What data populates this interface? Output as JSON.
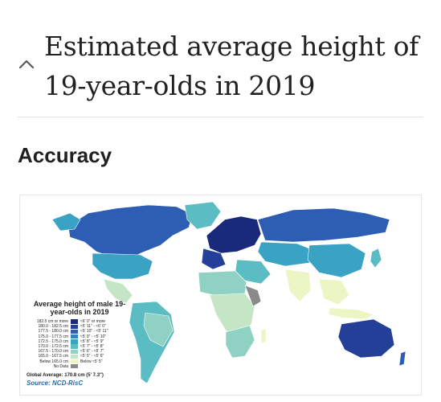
{
  "header": {
    "title": "Estimated average height of 19-year-olds in 2019",
    "collapse_icon": "chevron-up-icon"
  },
  "section": {
    "heading": "Accuracy"
  },
  "map": {
    "legend_title": "Average height of male 19-year-olds in 2019",
    "legend_items": [
      {
        "cm": "182.5 cm or more",
        "ft": "≈6' 0\" or more",
        "color": "#1a2a7a"
      },
      {
        "cm": "180.0 - 182.5 cm",
        "ft": "≈5' 11\" - ≈6' 0\"",
        "color": "#233f98"
      },
      {
        "cm": "177.5 - 180.0 cm",
        "ft": "≈5' 10\" - ≈5' 11\"",
        "color": "#2e5eb3"
      },
      {
        "cm": "175.0 - 177.5 cm",
        "ft": "≈5' 9\" - ≈5' 10\"",
        "color": "#2c86c0"
      },
      {
        "cm": "172.5 - 175.0 cm",
        "ft": "≈5' 8\" - ≈5' 9\"",
        "color": "#3aa3c4"
      },
      {
        "cm": "170.0 - 172.5 cm",
        "ft": "≈5' 7\" - ≈5' 8\"",
        "color": "#5bbcc3"
      },
      {
        "cm": "167.5 - 170.0 cm",
        "ft": "≈5' 6\" - ≈5' 7\"",
        "color": "#8fd2c4"
      },
      {
        "cm": "165.0 - 167.5 cm",
        "ft": "≈5' 5\" - ≈5' 6\"",
        "color": "#c4e6c4"
      },
      {
        "cm": "Below 165.0 cm",
        "ft": "Below ≈5' 5\"",
        "color": "#ecf5c4"
      },
      {
        "cm": "No Data",
        "ft": "",
        "color": "#8a8a8a"
      }
    ],
    "global_average": "Global Average: 170.8 cm (5' 7.3\")",
    "source": "Source: NCD-RisC",
    "colors": {
      "ocean": "#ffffff",
      "no_data": "#8a8a8a",
      "border": "#ffffff"
    }
  }
}
